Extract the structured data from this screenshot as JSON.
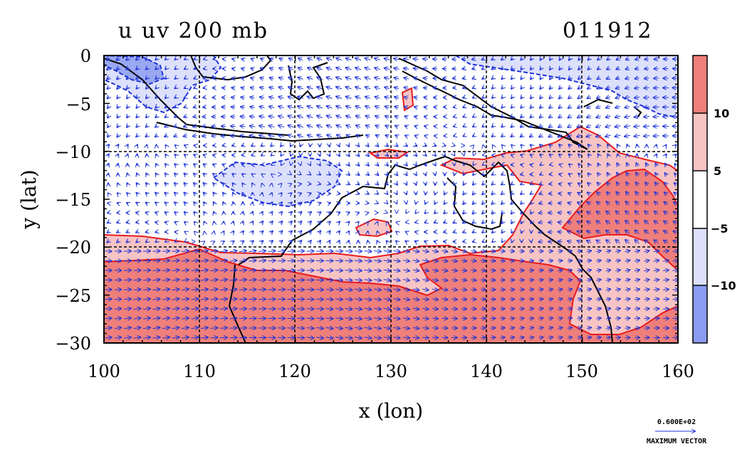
{
  "title": {
    "left": "u uv 200 mb",
    "right": "011912"
  },
  "axes": {
    "xlabel": "x (lon)",
    "ylabel": "y (lat)",
    "xlim": [
      100,
      160
    ],
    "ylim": [
      -30,
      0
    ],
    "xticks": [
      "100",
      "110",
      "120",
      "130",
      "140",
      "150",
      "160"
    ],
    "yticks": [
      "0",
      "−5",
      "−10",
      "−15",
      "−20",
      "−25",
      "−30"
    ],
    "grid": true
  },
  "colorbar": {
    "ticks": [
      "10",
      "5",
      "−5",
      "−10"
    ],
    "levels": [
      -10,
      -5,
      5,
      10
    ],
    "colors": [
      "#8a9cf0",
      "#dde0fb",
      "#ffffff",
      "#f7c4c4",
      "#ef7f7b"
    ]
  },
  "max_vector": {
    "value": "0.600E+02",
    "label": "MAXIMUM VECTOR"
  },
  "colors": {
    "positive_contour": "#e81c1c",
    "negative_contour": "#1f33d6",
    "vectors": "#1f33d6"
  }
}
